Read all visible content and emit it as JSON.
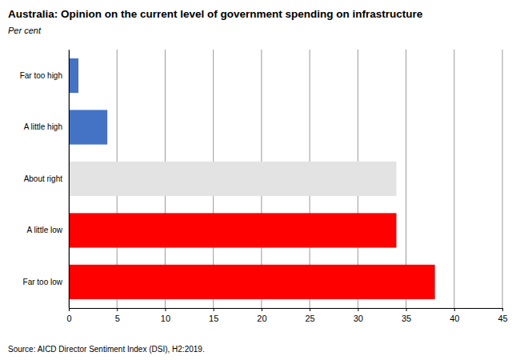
{
  "chart_data": {
    "type": "bar",
    "orientation": "horizontal",
    "title": "Australia: Opinion on the current level of government spending on infrastructure",
    "subtitle": "Per cent",
    "source": "Source: AICD Director Sentiment Index (DSI), H2:2019.",
    "categories": [
      "Far too high",
      "A little high",
      "About right",
      "A little low",
      "Far too low"
    ],
    "values": [
      1,
      4,
      34,
      34,
      38
    ],
    "colors": [
      "#4472c4",
      "#4472c4",
      "#e3e3e3",
      "#ff0000",
      "#ff0000"
    ],
    "xlim": [
      0,
      45
    ],
    "xticks": [
      0,
      5,
      10,
      15,
      20,
      25,
      30,
      35,
      40,
      45
    ],
    "grid": true
  }
}
